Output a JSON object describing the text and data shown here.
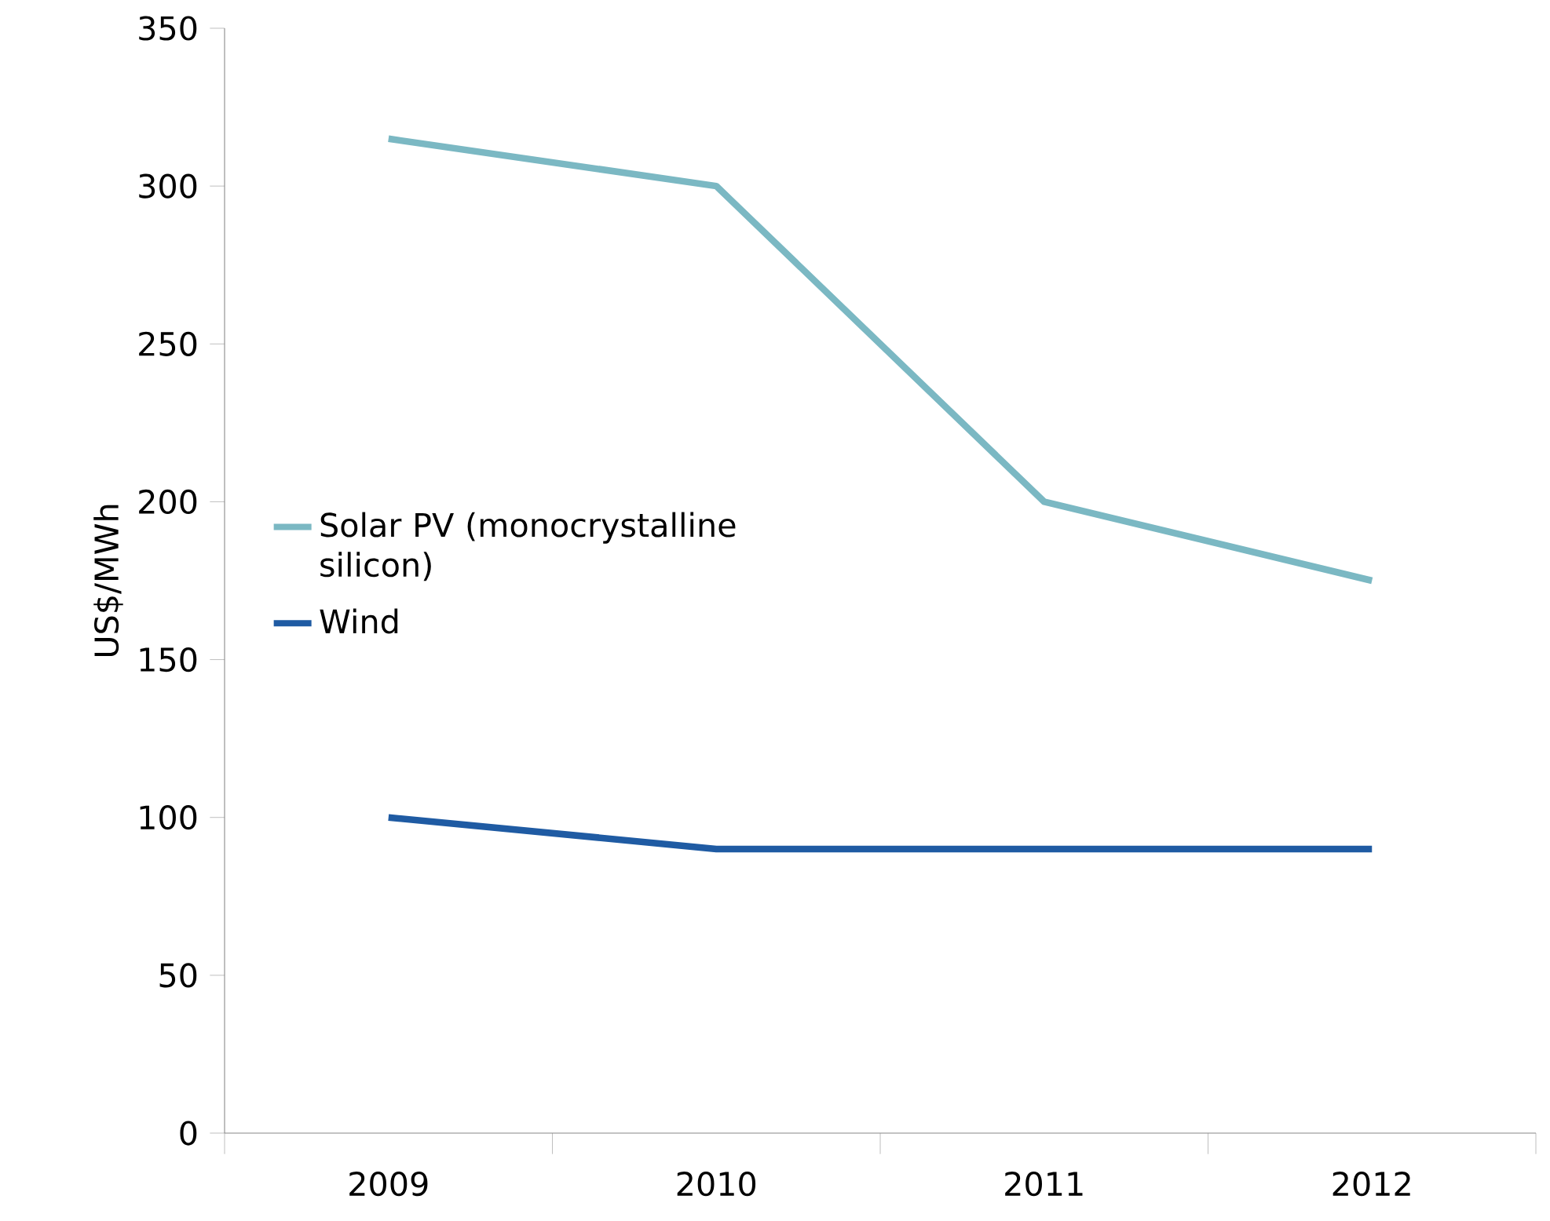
{
  "chart_data": {
    "type": "line",
    "ylabel": "US$/MWh",
    "categories": [
      "2009",
      "2010",
      "2011",
      "2012"
    ],
    "series": [
      {
        "name": "Solar PV (monocrystalline silicon)",
        "color": "#7bb8c3",
        "values": [
          315,
          300,
          200,
          175
        ]
      },
      {
        "name": "Wind",
        "color": "#1f5ba3",
        "values": [
          100,
          90,
          90,
          90
        ]
      }
    ],
    "ylim": [
      0,
      350
    ],
    "yticks": [
      0,
      50,
      100,
      150,
      200,
      250,
      300,
      350
    ],
    "grid": false,
    "legend": "left",
    "marker": "none",
    "line_style": "solid"
  }
}
